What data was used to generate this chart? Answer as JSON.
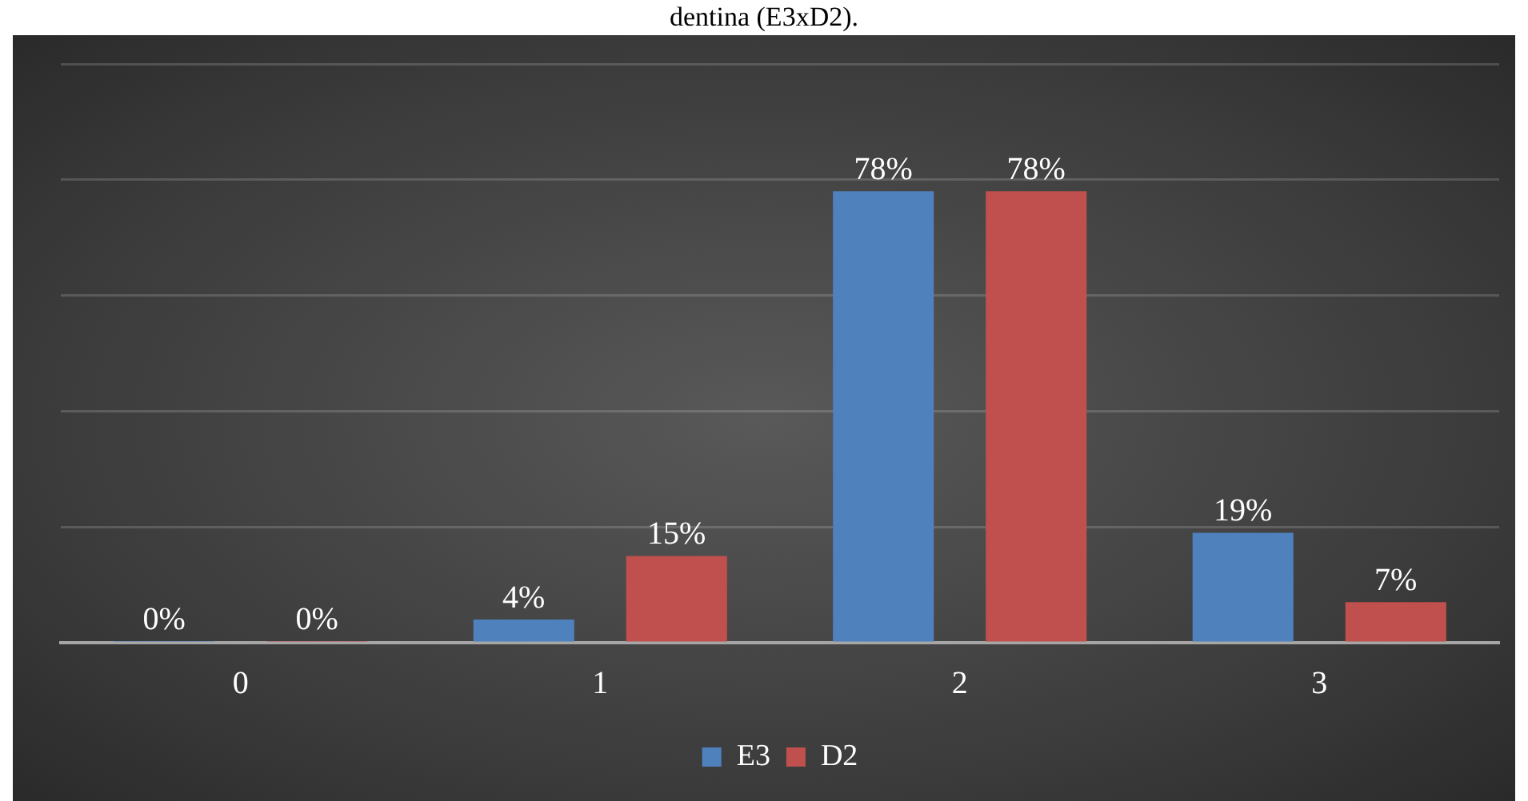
{
  "chart_data": {
    "type": "bar",
    "title": "dentina (E3xD2).",
    "categories": [
      "0",
      "1",
      "2",
      "3"
    ],
    "series": [
      {
        "name": "E3",
        "color": "#4f81bd",
        "values": [
          0,
          4,
          78,
          19
        ],
        "value_labels": [
          "0%",
          "4%",
          "78%",
          "19%"
        ]
      },
      {
        "name": "D2",
        "color": "#c0504d",
        "values": [
          0,
          15,
          78,
          7
        ],
        "value_labels": [
          "0%",
          "15%",
          "78%",
          "7%"
        ]
      }
    ],
    "ylim": [
      0,
      100
    ],
    "yticks": [
      {
        "value": 0,
        "label": null
      },
      {
        "value": 20,
        "label": null
      },
      {
        "value": 40,
        "label": null
      },
      {
        "value": 60,
        "label": null
      },
      {
        "value": 80,
        "label": null
      },
      {
        "value": 100,
        "label": null
      }
    ],
    "tick_labels": "x",
    "grid": "y",
    "legend": "bottom"
  }
}
